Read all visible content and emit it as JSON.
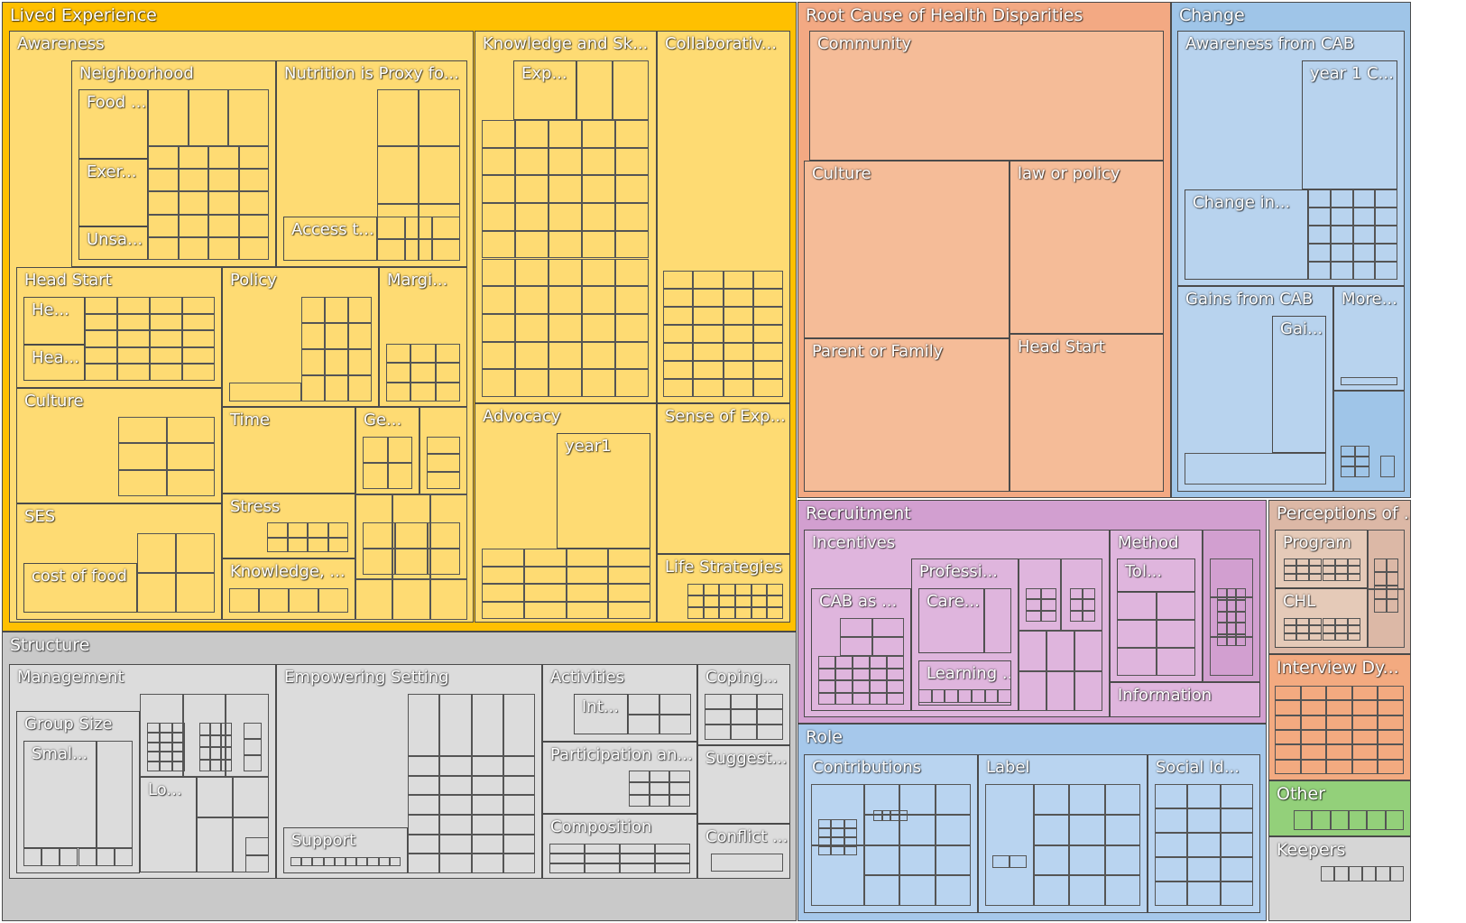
{
  "chart_data": {
    "type": "treemap",
    "title": "",
    "colors": {
      "Lived Experience": "#ffc000",
      "Lived Experience (inner)": "#fedb73",
      "Root Cause of Health Disparities": "#f3a983",
      "Root Cause of Health Disparities (inner)": "#f5bc98",
      "Change": "#9fc5e8",
      "Change (inner)": "#b8d3ee",
      "Structure": "#c9c9c9",
      "Structure (inner)": "#dcdcdc",
      "Recruitment": "#d29fd0",
      "Recruitment (inner)": "#dfb5dd",
      "Role": "#a6c8eb",
      "Role (inner)": "#b9d4f0",
      "Perceptions of ...": "#dcb8a6",
      "Perceptions of ... (inner)": "#e5cab8",
      "Interview Dy...": "#f3aa80",
      "Other": "#93d07a",
      "Other (inner)": "#a9db93",
      "Keepers": "#d6d6d6"
    },
    "labels": {
      "lived_experience": "Lived Experience",
      "awareness": "Awareness",
      "neighborhood": "Neighborhood",
      "food": "Food ...",
      "exer": "Exer...",
      "unsa": "Unsa...",
      "nutrition": "Nutrition is Proxy fo...",
      "access": "Access t...",
      "head_start": "Head Start",
      "he": "He...",
      "hea": "Hea...",
      "policy": "Policy",
      "margi": "Margi...",
      "culture": "Culture",
      "time": "Time",
      "ge": "Ge...",
      "stress": "Stress",
      "ses": "SES",
      "cost_of_food": "cost of food",
      "knowledge_le": "Knowledge, ...",
      "knowledge_sk": "Knowledge and Sk...",
      "exp": "Exp...",
      "collaborativ": "Collaborativ...",
      "advocacy": "Advocacy",
      "year1": "year1",
      "sense_of_exp": "Sense of Exp...",
      "life_strategies": "Life Strategies",
      "root_cause": "Root Cause of Health Disparities",
      "community": "Community",
      "rc_culture": "Culture",
      "law_or_policy": "law or policy",
      "parent_or_family": "Parent or Family",
      "rc_head_start": "Head Start",
      "change": "Change",
      "awareness_from_cab": "Awareness from CAB",
      "year1c": "year 1 C...",
      "change_in": "Change in...",
      "gains_from_cab": "Gains from CAB",
      "gai": "Gai...",
      "more": "More...",
      "structure": "Structure",
      "management": "Management",
      "group_size": "Group Size",
      "smal": "Smal...",
      "lo": "Lo...",
      "empowering_setting": "Empowering Setting",
      "support": "Support",
      "activities": "Activities",
      "int": "Int...",
      "participation": "Participation an...",
      "composition": "Composition",
      "coping": "Coping...",
      "suggest": "Suggest...",
      "conflict": "Conflict ...",
      "recruitment": "Recruitment",
      "incentives": "Incentives",
      "cab_as": "CAB as ...",
      "professi": "Professi...",
      "care": "Care...",
      "learning": "Learning ...",
      "method": "Method",
      "tol": "Tol...",
      "information": "Information",
      "role": "Role",
      "contributions": "Contributions",
      "label": "Label",
      "social_id": "Social Id...",
      "perceptions": "Perceptions of ...",
      "program": "Program",
      "chl": "CHL",
      "interview_dy": "Interview Dy...",
      "other": "Other",
      "keepers": "Keepers"
    }
  }
}
